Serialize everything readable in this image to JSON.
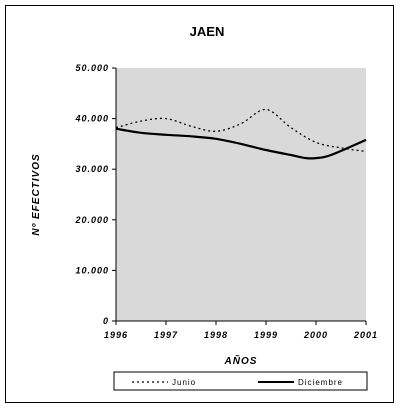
{
  "chart_data": {
    "type": "line",
    "title": "JAEN",
    "xlabel": "AÑOS",
    "ylabel": "Nº EFECTIVOS",
    "x": [
      1996,
      1997,
      1998,
      1999,
      2000,
      2001
    ],
    "x_tick_labels": [
      "1996",
      "1997",
      "1998",
      "1999",
      "2000",
      "2001"
    ],
    "y_tick_labels": [
      "0",
      "10.000",
      "20.000",
      "30.000",
      "40.000",
      "50.000"
    ],
    "xlim": [
      1996,
      2001
    ],
    "ylim": [
      0,
      50000
    ],
    "grid": false,
    "plot_background": "#d9d9d9",
    "legend_position": "bottom",
    "series": [
      {
        "name": "Junio",
        "style": "dotted",
        "color": "#000000",
        "points": [
          [
            1996,
            38200
          ],
          [
            1996.5,
            39500
          ],
          [
            1997,
            40000
          ],
          [
            1997.5,
            38500
          ],
          [
            1998,
            37500
          ],
          [
            1998.5,
            39000
          ],
          [
            1999,
            41800
          ],
          [
            1999.5,
            38200
          ],
          [
            2000,
            35300
          ],
          [
            2000.5,
            34200
          ],
          [
            2001,
            33500
          ]
        ]
      },
      {
        "name": "Diciembre",
        "style": "solid",
        "color": "#000000",
        "points": [
          [
            1996,
            38000
          ],
          [
            1996.5,
            37200
          ],
          [
            1997,
            36800
          ],
          [
            1997.5,
            36500
          ],
          [
            1998,
            36000
          ],
          [
            1998.5,
            35000
          ],
          [
            1999,
            33800
          ],
          [
            1999.5,
            32800
          ],
          [
            1999.8,
            32200
          ],
          [
            2000,
            32200
          ],
          [
            2000.3,
            32800
          ],
          [
            2001,
            35800
          ]
        ]
      }
    ]
  }
}
